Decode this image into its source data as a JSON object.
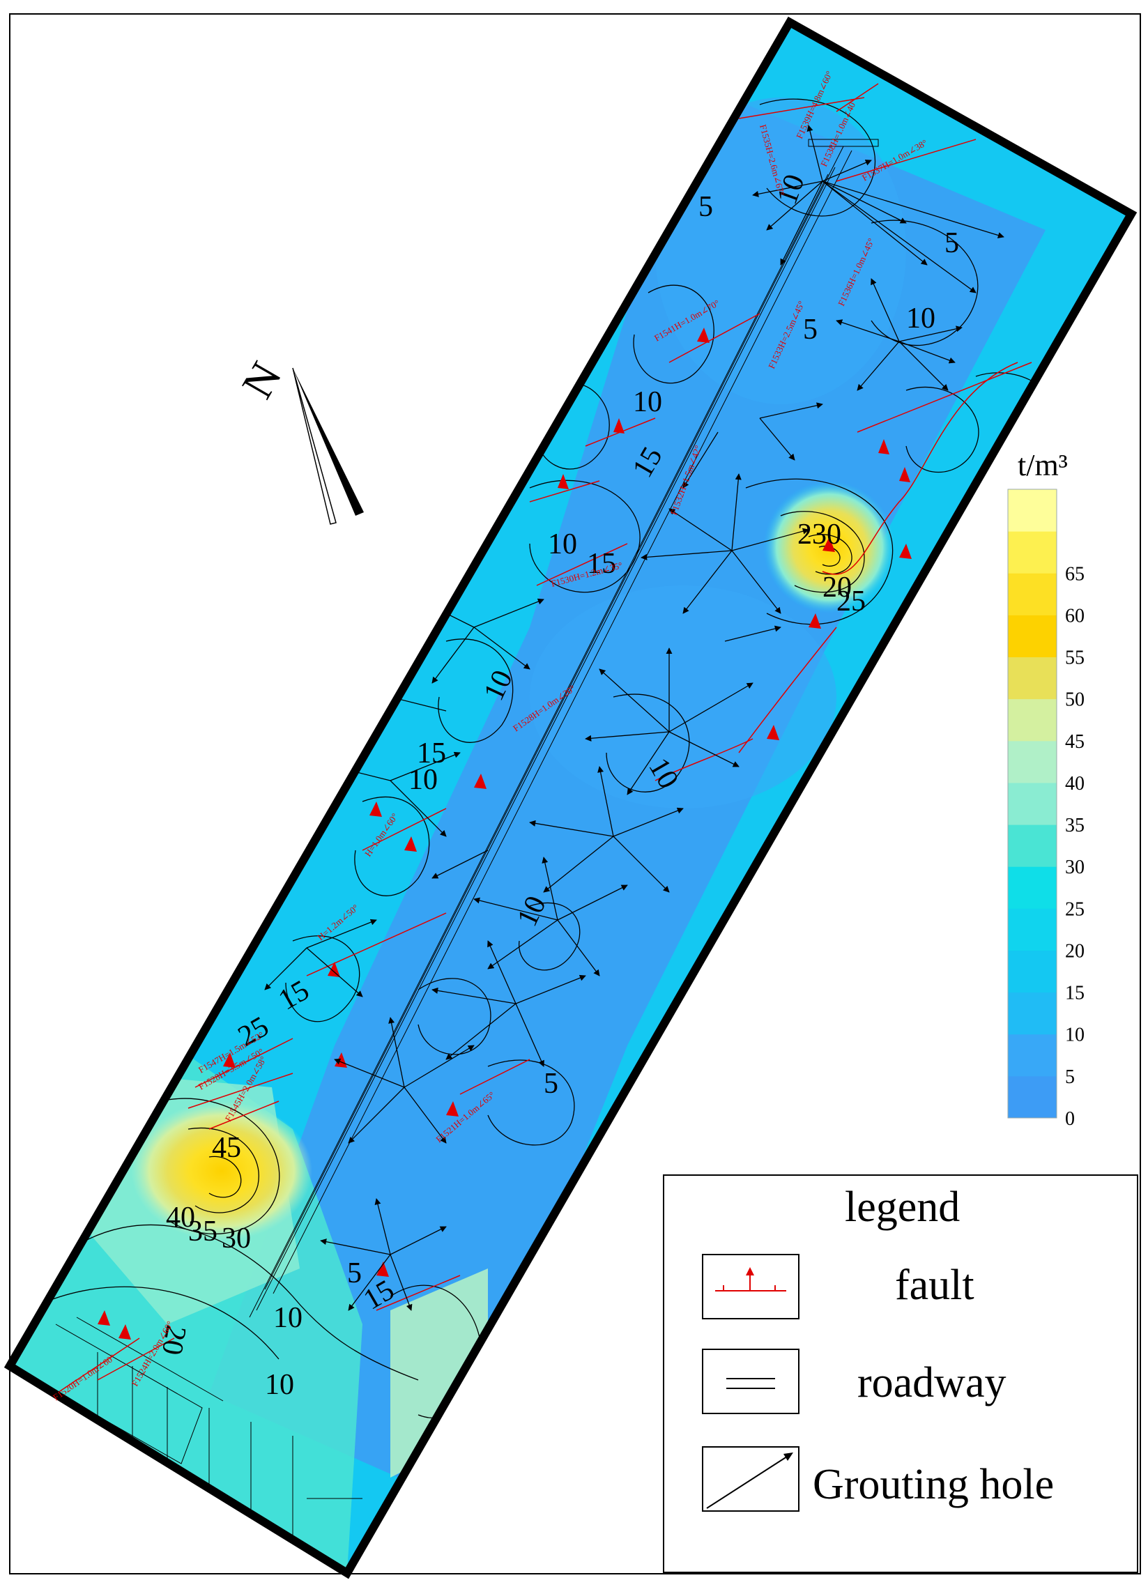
{
  "north": {
    "label": "N"
  },
  "scale": {
    "unit": "t/m³",
    "ticks": [
      "0",
      "5",
      "10",
      "15",
      "20",
      "25",
      "30",
      "35",
      "40",
      "45",
      "50",
      "55",
      "60",
      "65"
    ],
    "colors": [
      "#3d9cf5",
      "#38a8f7",
      "#20bcf5",
      "#14c8f2",
      "#10d4ee",
      "#0fdee8",
      "#4ae4d4",
      "#8aecd2",
      "#b0f0c8",
      "#d4f0a0",
      "#e8e058",
      "#fdd200",
      "#fde024",
      "#fdf050",
      "#fefe9a"
    ]
  },
  "contour_labels": [
    "5",
    "10",
    "10",
    "10",
    "10",
    "15",
    "5",
    "10",
    "15",
    "10",
    "15",
    "10",
    "10",
    "5",
    "10",
    "15",
    "25",
    "45",
    "40",
    "35",
    "30",
    "5",
    "15",
    "10",
    "20",
    "5",
    "230",
    "20",
    "25"
  ],
  "fault_labels": [
    "F1539H=4.8m∠60°",
    "F1538H=1.0m∠40°",
    "F1537H=1.0m∠38°",
    "F1535H=2.6m∠67°",
    "F1541H=1.0m∠70°",
    "F1533H=2.5m∠45°",
    "F1536H=1.0m∠45°",
    "F1532H=1.5m∠42°",
    "F1530H=1.2m∠35°",
    "F1528H=1.0m∠20°",
    "H=1.0m∠60°",
    "H=1.2m∠50°",
    "F1547H=1.5m∠52°",
    "F1528H=3.5m∠50°",
    "F1545H=2.0m∠58°",
    "F1521H=1.0m∠65°",
    "F1524H=2.0m∠60°",
    "F1520H=1.0m∠60°"
  ],
  "legend": {
    "title": "legend",
    "items": [
      {
        "label": "fault",
        "icon": "fault-symbol-icon"
      },
      {
        "label": "roadway",
        "icon": "roadway-symbol-icon"
      },
      {
        "label": "Grouting hole",
        "icon": "grouting-hole-symbol-icon"
      }
    ]
  }
}
